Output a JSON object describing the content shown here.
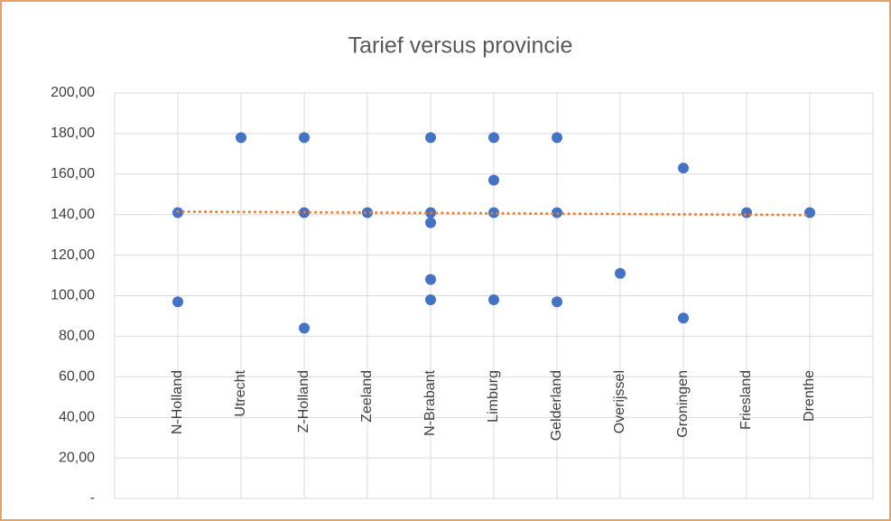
{
  "chart_data": {
    "type": "scatter",
    "title": "Tarief versus provincie",
    "xlim": [
      0,
      12
    ],
    "xticks": [
      {
        "value": 1,
        "label": "N-Holland"
      },
      {
        "value": 2,
        "label": "Utrecht"
      },
      {
        "value": 3,
        "label": "Z-Holland"
      },
      {
        "value": 4,
        "label": "Zeeland"
      },
      {
        "value": 5,
        "label": "N-Brabant"
      },
      {
        "value": 6,
        "label": "Limburg"
      },
      {
        "value": 7,
        "label": "Gelderland"
      },
      {
        "value": 8,
        "label": "Overijssel"
      },
      {
        "value": 9,
        "label": "Groningen"
      },
      {
        "value": 10,
        "label": "Friesland"
      },
      {
        "value": 11,
        "label": "Drenthe"
      }
    ],
    "ylim": [
      0,
      200
    ],
    "yticks": [
      {
        "value": 0,
        "label": "-"
      },
      {
        "value": 20,
        "label": "20,00"
      },
      {
        "value": 40,
        "label": "40,00"
      },
      {
        "value": 60,
        "label": "60,00"
      },
      {
        "value": 80,
        "label": "80,00"
      },
      {
        "value": 100,
        "label": "100,00"
      },
      {
        "value": 120,
        "label": "120,00"
      },
      {
        "value": 140,
        "label": "140,00"
      },
      {
        "value": 160,
        "label": "160,00"
      },
      {
        "value": 180,
        "label": "180,00"
      },
      {
        "value": 200,
        "label": "200,00"
      }
    ],
    "grid": true,
    "series": [
      {
        "color": "#4472c4",
        "x": [
          1,
          1,
          2,
          3,
          3,
          3,
          4,
          5,
          5,
          5,
          5,
          5,
          6,
          6,
          6,
          6,
          7,
          7,
          7,
          8,
          9,
          9,
          10,
          11
        ],
        "values": [
          141,
          97,
          178,
          178,
          141,
          84,
          141,
          178,
          141,
          136,
          108,
          98,
          178,
          157,
          141,
          98,
          178,
          141,
          97,
          111,
          163,
          89,
          141,
          141
        ]
      }
    ],
    "trendline": {
      "color": "#ed7d31",
      "x": [
        1,
        11
      ],
      "values": [
        141.5,
        139.8
      ]
    }
  }
}
